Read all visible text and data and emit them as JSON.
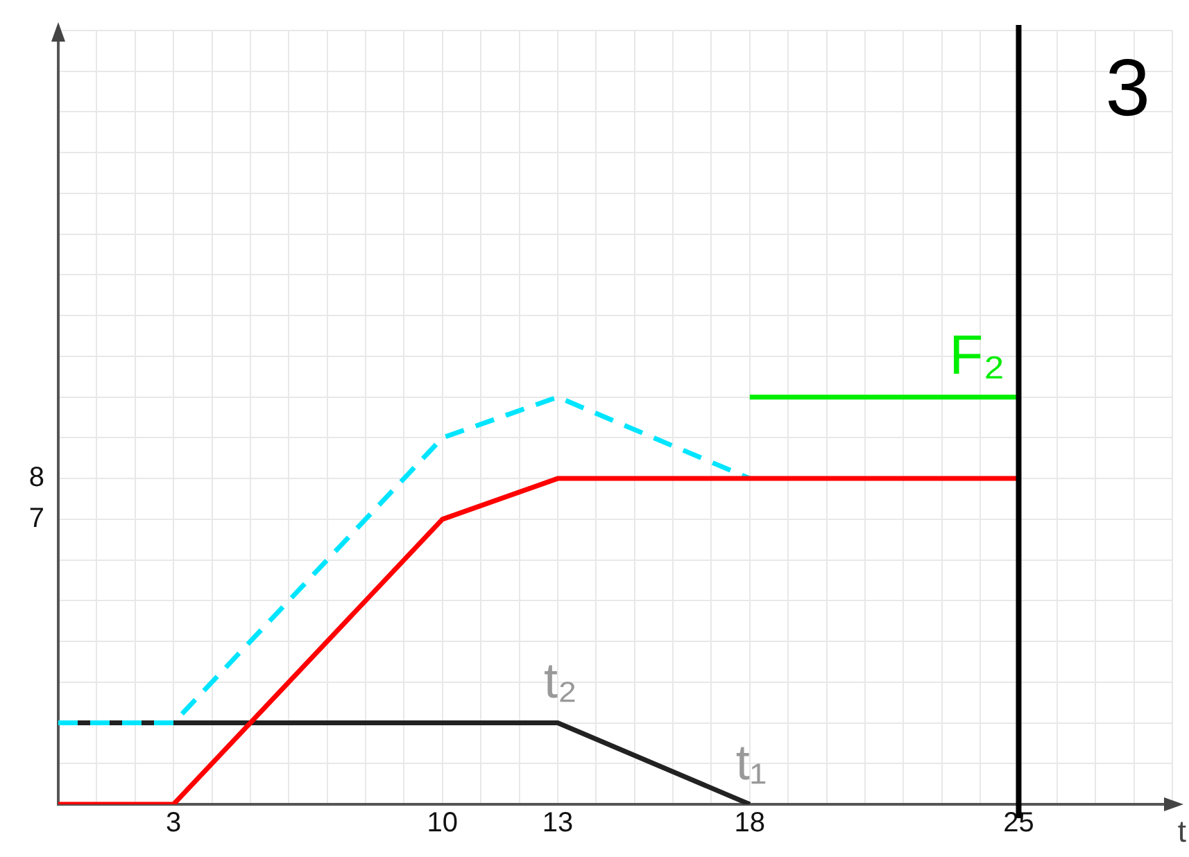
{
  "chart_data": {
    "type": "line",
    "title": "3",
    "xlabel": "t",
    "xlim": [
      0,
      29
    ],
    "ylim": [
      0,
      19
    ],
    "xticks": [
      {
        "value": 0,
        "label": null
      },
      {
        "value": 1,
        "label": null
      },
      {
        "value": 2,
        "label": null
      },
      3,
      {
        "value": 4,
        "label": null
      },
      {
        "value": 5,
        "label": null
      },
      {
        "value": 6,
        "label": null
      },
      {
        "value": 7,
        "label": null
      },
      {
        "value": 8,
        "label": null
      },
      {
        "value": 9,
        "label": null
      },
      10,
      {
        "value": 11,
        "label": null
      },
      {
        "value": 12,
        "label": null
      },
      13,
      {
        "value": 14,
        "label": null
      },
      {
        "value": 15,
        "label": null
      },
      {
        "value": 16,
        "label": null
      },
      {
        "value": 17,
        "label": null
      },
      18,
      {
        "value": 19,
        "label": null
      },
      {
        "value": 20,
        "label": null
      },
      {
        "value": 21,
        "label": null
      },
      {
        "value": 22,
        "label": null
      },
      {
        "value": 23,
        "label": null
      },
      {
        "value": 24,
        "label": null
      },
      25,
      {
        "value": 26,
        "label": null
      },
      {
        "value": 27,
        "label": null
      },
      {
        "value": 28,
        "label": null
      },
      {
        "value": 29,
        "label": null
      }
    ],
    "yticks": [
      {
        "value": 0,
        "label": null
      },
      {
        "value": 1,
        "label": null
      },
      {
        "value": 2,
        "label": null
      },
      {
        "value": 3,
        "label": null
      },
      {
        "value": 4,
        "label": null
      },
      {
        "value": 5,
        "label": null
      },
      {
        "value": 6,
        "label": null
      },
      7,
      8,
      {
        "value": 9,
        "label": null
      },
      {
        "value": 10,
        "label": null
      },
      {
        "value": 11,
        "label": null
      },
      {
        "value": 12,
        "label": null
      },
      {
        "value": 13,
        "label": null
      },
      {
        "value": 14,
        "label": null
      },
      {
        "value": 15,
        "label": null
      },
      {
        "value": 16,
        "label": null
      },
      {
        "value": 17,
        "label": null
      },
      {
        "value": 18,
        "label": null
      },
      {
        "value": 19,
        "label": null
      }
    ],
    "grid": true,
    "marker": "none",
    "legend": false,
    "series": [
      {
        "color": "#ff0000",
        "x": [
          0,
          3,
          10,
          13,
          25
        ],
        "values": [
          0,
          0,
          7,
          8,
          8
        ]
      },
      {
        "color": "#00e5ff",
        "line_style": "dashed",
        "x": [
          0,
          3,
          10,
          13,
          18
        ],
        "values": [
          2,
          2,
          9,
          10,
          8
        ]
      },
      {
        "color": "#222222",
        "x": [
          0,
          13,
          18
        ],
        "values": [
          2,
          2,
          0
        ]
      },
      {
        "name": "F₂",
        "color": "#00ee00",
        "x": [
          18,
          25
        ],
        "values": [
          10,
          10
        ]
      }
    ],
    "ref_lines": [
      {
        "axis": "x",
        "value": 25,
        "color": "#000000"
      }
    ],
    "annotations": [
      {
        "text": "t₂",
        "x": 13,
        "y": 2
      },
      {
        "text": "t₁",
        "x": 18,
        "y": 0
      }
    ]
  }
}
